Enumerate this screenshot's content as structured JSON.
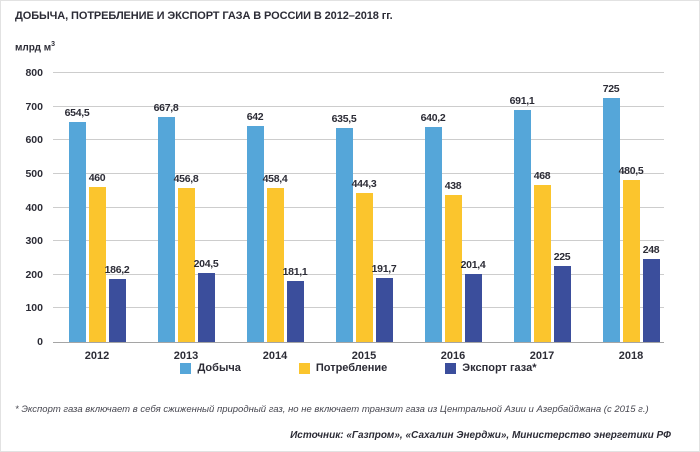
{
  "title": "ДОБЫЧА, ПОТРЕБЛЕНИЕ И ЭКСПОРТ ГАЗА В РОССИИ В 2012–2018 гг.",
  "unit_label": {
    "text": "млрд м",
    "sup": "3"
  },
  "footnote": "* Экспорт газа включает в себя сжиженный природный газ, но не включает транзит газа из Центральной Азии и Азербайджана (с 2015 г.)",
  "source": "Источник: «Газпром», «Сахалин Энерджи», Министерство энергетики РФ",
  "colors": {
    "production_blue": "#55a6d9",
    "consumption_yellow": "#fbc52d",
    "export_navy": "#3b4e9c",
    "grid": "#cdcdcd",
    "text_dark": "#2c2c36"
  },
  "chart_data": {
    "type": "bar",
    "title": "ДОБЫЧА, ПОТРЕБЛЕНИЕ И ЭКСПОРТ ГАЗА В РОССИИ В 2012–2018 гг.",
    "ylabel": "млрд м³",
    "xlabel": "",
    "categories": [
      "2012",
      "2013",
      "2014",
      "2015",
      "2016",
      "2017",
      "2018"
    ],
    "series": [
      {
        "name": "Добыча",
        "color": "#55a6d9",
        "values": [
          654.5,
          667.8,
          642,
          635.5,
          640.2,
          691.1,
          725
        ],
        "labels": [
          "654,5",
          "667,8",
          "642",
          "635,5",
          "640,2",
          "691,1",
          "725"
        ]
      },
      {
        "name": "Потребление",
        "color": "#fbc52d",
        "values": [
          460,
          456.8,
          458.4,
          444.3,
          438,
          468,
          480.5
        ],
        "labels": [
          "460",
          "456,8",
          "458,4",
          "444,3",
          "438",
          "468",
          "480,5"
        ]
      },
      {
        "name": "Экспорт газа*",
        "color": "#3b4e9c",
        "values": [
          186.2,
          204.5,
          181.1,
          191.7,
          201.4,
          225,
          248
        ],
        "labels": [
          "186,2",
          "204,5",
          "181,1",
          "191,7",
          "201,4",
          "225",
          "248"
        ]
      }
    ],
    "ylim": [
      0,
      800
    ],
    "ytick_step": 100,
    "grid": true,
    "legend_position": "bottom"
  }
}
